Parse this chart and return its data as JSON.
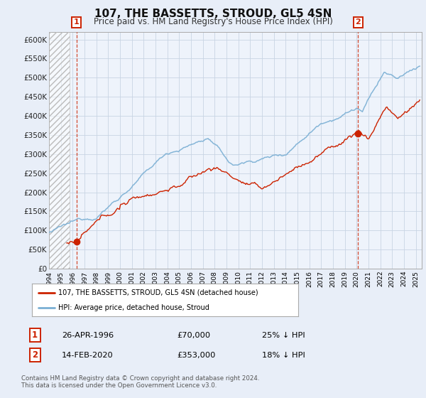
{
  "title": "107, THE BASSETTS, STROUD, GL5 4SN",
  "subtitle": "Price paid vs. HM Land Registry's House Price Index (HPI)",
  "ylim": [
    0,
    620000
  ],
  "yticks": [
    0,
    50000,
    100000,
    150000,
    200000,
    250000,
    300000,
    350000,
    400000,
    450000,
    500000,
    550000,
    600000
  ],
  "ytick_labels": [
    "£0",
    "£50K",
    "£100K",
    "£150K",
    "£200K",
    "£250K",
    "£300K",
    "£350K",
    "£400K",
    "£450K",
    "£500K",
    "£550K",
    "£600K"
  ],
  "xlim_start": 1994.0,
  "xlim_end": 2025.5,
  "xtick_years": [
    1994,
    1995,
    1996,
    1997,
    1998,
    1999,
    2000,
    2001,
    2002,
    2003,
    2004,
    2005,
    2006,
    2007,
    2008,
    2009,
    2010,
    2011,
    2012,
    2013,
    2014,
    2015,
    2016,
    2017,
    2018,
    2019,
    2020,
    2021,
    2022,
    2023,
    2024,
    2025
  ],
  "hpi_color": "#7aafd4",
  "price_color": "#cc2200",
  "marker1_x": 1996.32,
  "marker1_y": 70000,
  "marker2_x": 2020.12,
  "marker2_y": 353000,
  "annotation1_label": "1",
  "annotation2_label": "2",
  "legend_label1": "107, THE BASSETTS, STROUD, GL5 4SN (detached house)",
  "legend_label2": "HPI: Average price, detached house, Stroud",
  "table_row1_num": "1",
  "table_row1_date": "26-APR-1996",
  "table_row1_price": "£70,000",
  "table_row1_hpi": "25% ↓ HPI",
  "table_row2_num": "2",
  "table_row2_date": "14-FEB-2020",
  "table_row2_price": "£353,000",
  "table_row2_hpi": "18% ↓ HPI",
  "footnote": "Contains HM Land Registry data © Crown copyright and database right 2024.\nThis data is licensed under the Open Government Licence v3.0.",
  "bg_color": "#e8eef8",
  "plot_bg_color": "#eef3fb",
  "grid_color": "#c8d4e4"
}
